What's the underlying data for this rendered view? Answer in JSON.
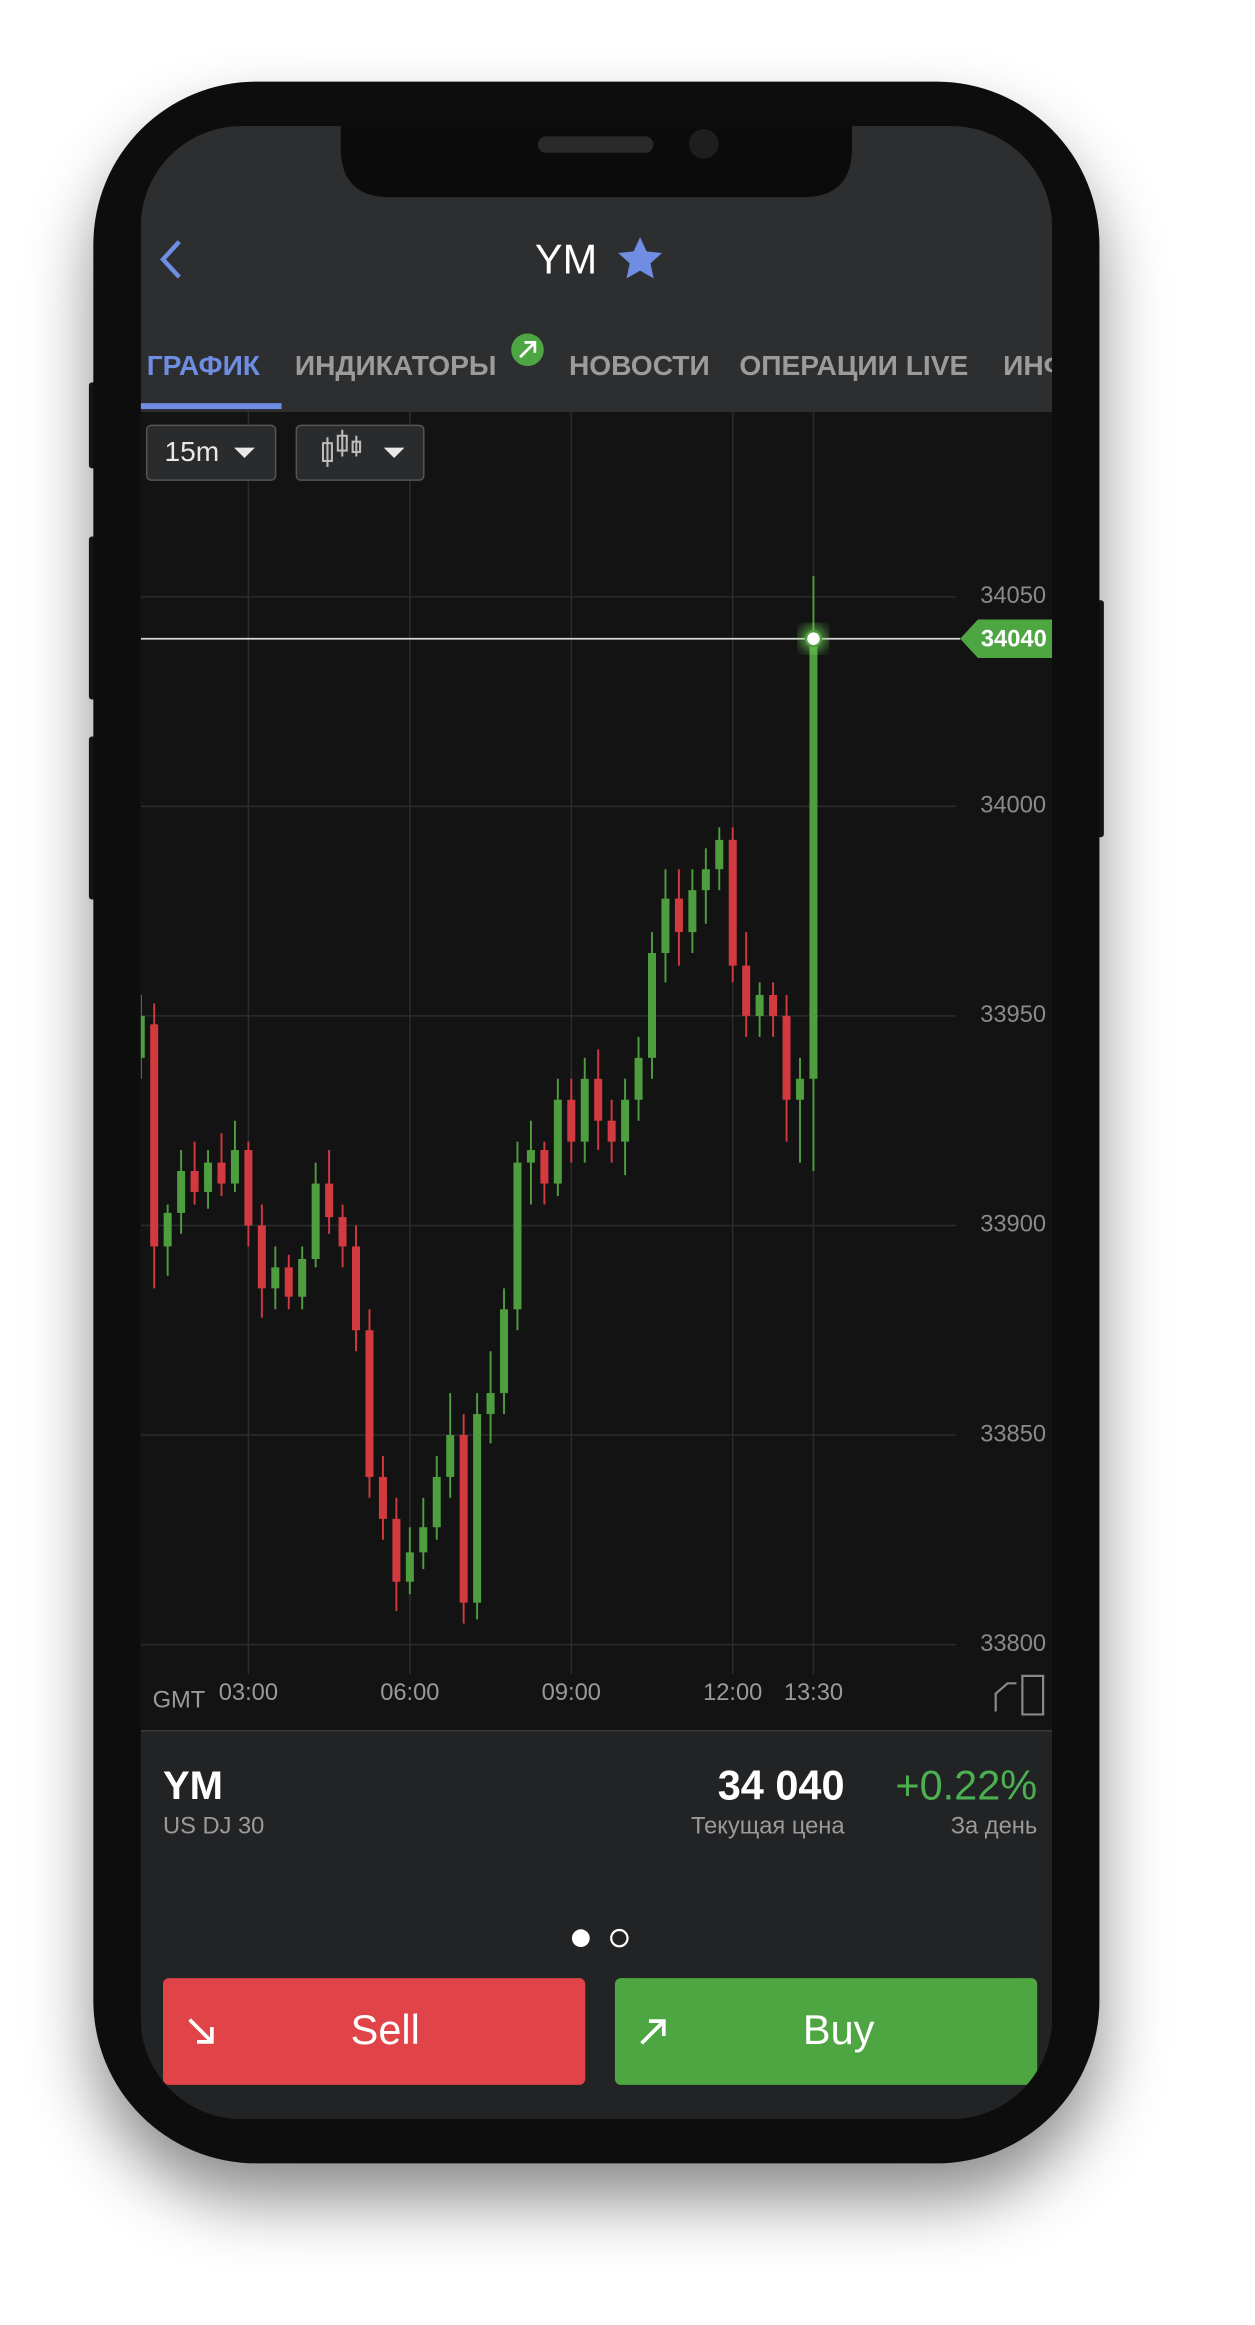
{
  "header": {
    "title": "YM"
  },
  "tabs": [
    "ГРАФИК",
    "ИНДИКАТОРЫ",
    "НОВОСТИ",
    "ОПЕРАЦИИ LIVE",
    "ИНФО"
  ],
  "toolbar": {
    "timeframe": "15m"
  },
  "chart_data": {
    "type": "candlestick",
    "x": [
      "01:00",
      "01:15",
      "01:30",
      "01:45",
      "02:00",
      "02:15",
      "02:30",
      "02:45",
      "03:00",
      "03:15",
      "03:30",
      "03:45",
      "04:00",
      "04:15",
      "04:30",
      "04:45",
      "05:00",
      "05:15",
      "05:30",
      "05:45",
      "06:00",
      "06:15",
      "06:30",
      "06:45",
      "07:00",
      "07:15",
      "07:30",
      "07:45",
      "08:00",
      "08:15",
      "08:30",
      "08:45",
      "09:00",
      "09:15",
      "09:30",
      "09:45",
      "10:00",
      "10:15",
      "10:30",
      "10:45",
      "11:00",
      "11:15",
      "11:30",
      "11:45",
      "12:00",
      "12:15",
      "12:30",
      "12:45",
      "13:00",
      "13:15",
      "13:30"
    ],
    "open": [
      33940,
      33948,
      33895,
      33903,
      33913,
      33908,
      33915,
      33910,
      33918,
      33900,
      33885,
      33890,
      33883,
      33892,
      33910,
      33902,
      33895,
      33875,
      33840,
      33830,
      33815,
      33822,
      33828,
      33840,
      33850,
      33810,
      33855,
      33860,
      33880,
      33915,
      33918,
      33910,
      33930,
      33920,
      33935,
      33925,
      33920,
      33930,
      33940,
      33965,
      33978,
      33970,
      33980,
      33985,
      33992,
      33962,
      33950,
      33955,
      33950,
      33930,
      33935
    ],
    "high": [
      33955,
      33953,
      33905,
      33918,
      33920,
      33918,
      33922,
      33925,
      33920,
      33905,
      33895,
      33893,
      33895,
      33915,
      33918,
      33905,
      33900,
      33880,
      33845,
      33835,
      33828,
      33835,
      33845,
      33860,
      33855,
      33860,
      33870,
      33885,
      33920,
      33925,
      33920,
      33935,
      33935,
      33940,
      33942,
      33930,
      33935,
      33945,
      33970,
      33985,
      33985,
      33985,
      33990,
      33995,
      33995,
      33970,
      33958,
      33958,
      33955,
      33940,
      34055
    ],
    "low": [
      33935,
      33885,
      33888,
      33898,
      33905,
      33904,
      33907,
      33908,
      33895,
      33878,
      33880,
      33880,
      33880,
      33890,
      33898,
      33890,
      33870,
      33835,
      33825,
      33808,
      33812,
      33818,
      33825,
      33835,
      33805,
      33806,
      33848,
      33855,
      33875,
      33905,
      33905,
      33907,
      33915,
      33915,
      33918,
      33915,
      33912,
      33925,
      33935,
      33958,
      33962,
      33965,
      33972,
      33980,
      33958,
      33945,
      33945,
      33945,
      33920,
      33915,
      33913
    ],
    "close": [
      33950,
      33895,
      33903,
      33913,
      33908,
      33915,
      33910,
      33918,
      33900,
      33885,
      33890,
      33883,
      33892,
      33910,
      33902,
      33895,
      33875,
      33840,
      33830,
      33815,
      33822,
      33828,
      33840,
      33850,
      33810,
      33855,
      33860,
      33880,
      33915,
      33918,
      33910,
      33930,
      33920,
      33935,
      33925,
      33920,
      33930,
      33940,
      33965,
      33978,
      33970,
      33980,
      33985,
      33992,
      33962,
      33950,
      33955,
      33950,
      33930,
      33935,
      34040
    ],
    "up_color": "#4e9e3f",
    "down_color": "#d23a40",
    "ylim": [
      33795,
      34075
    ],
    "yticks": [
      33800,
      33850,
      33900,
      33950,
      34000,
      34050
    ],
    "xticks": [
      "03:00",
      "06:00",
      "09:00",
      "12:00",
      "13:30"
    ],
    "grid": true,
    "last_price": 34040,
    "timezone_label": "GMT"
  },
  "quote": {
    "symbol": "YM",
    "name": "US DJ 30",
    "price": "34 040",
    "price_label": "Текущая цена",
    "change": "+0.22%",
    "change_label": "За день"
  },
  "buttons": {
    "sell": "Sell",
    "buy": "Buy"
  }
}
